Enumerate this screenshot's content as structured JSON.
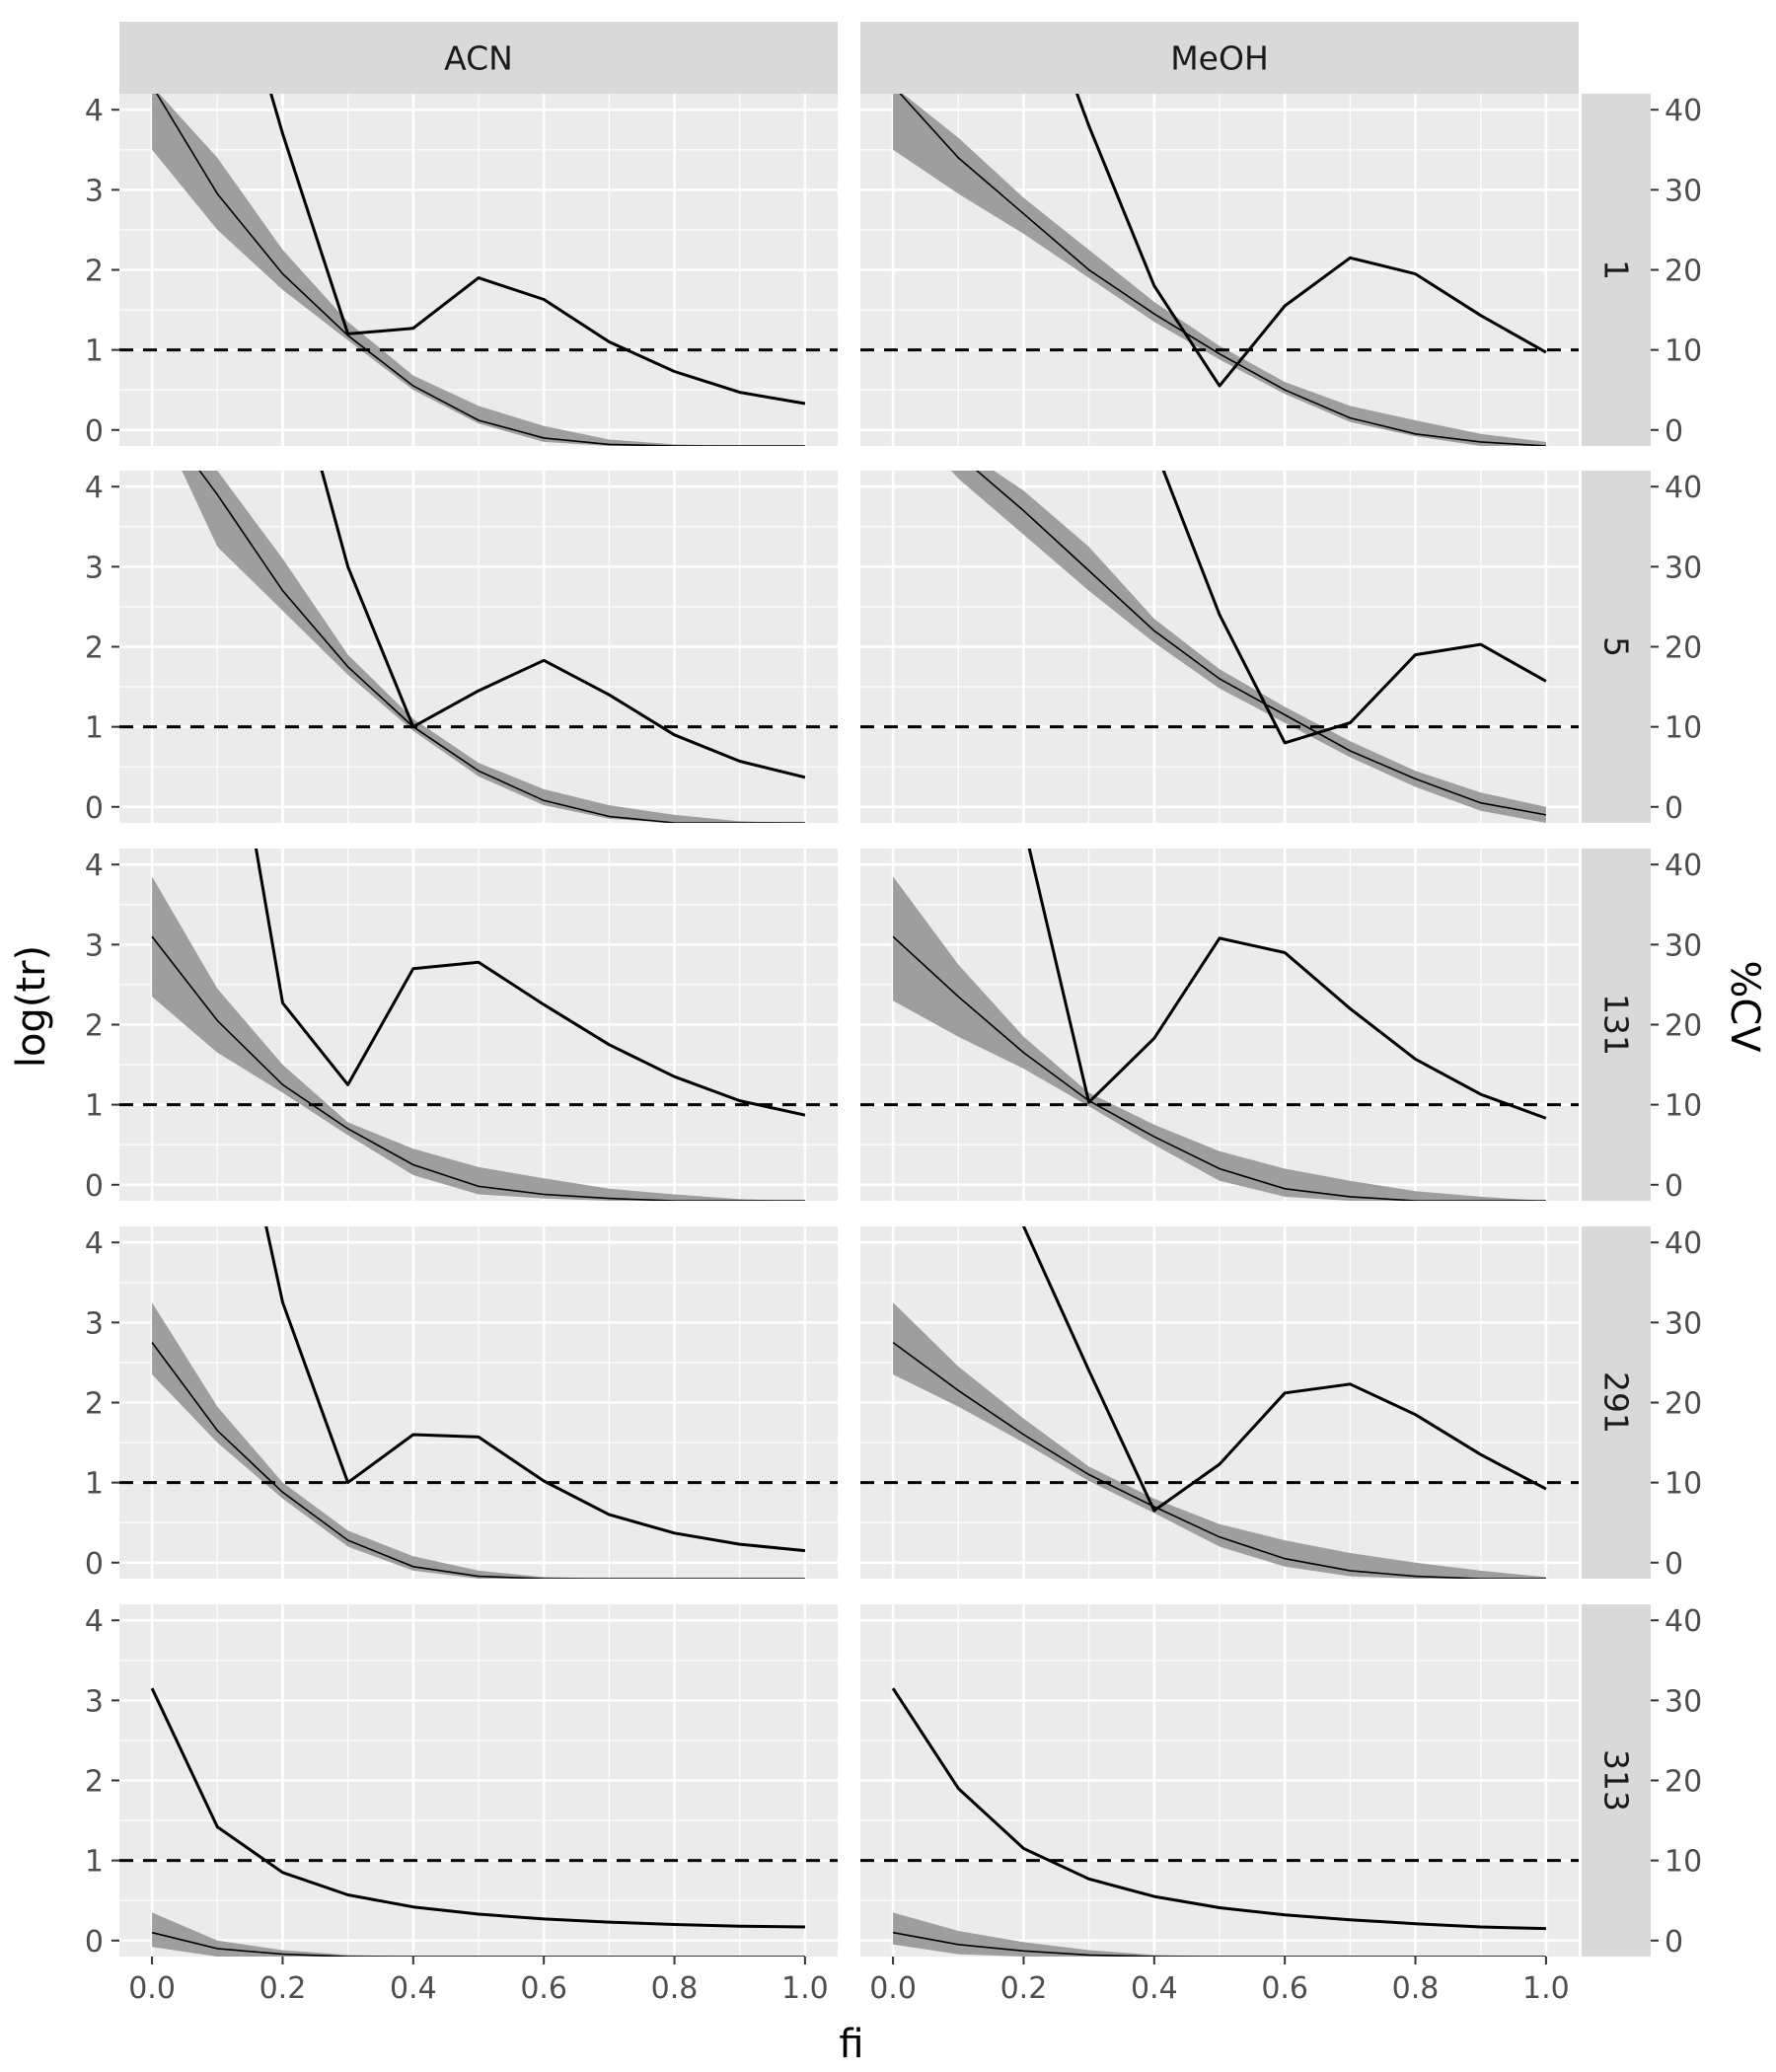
{
  "chart_data": {
    "type": "line",
    "panel_columns": [
      "ACN",
      "MeOH"
    ],
    "panel_rows": [
      "1",
      "5",
      "131",
      "291",
      "313"
    ],
    "xlabel": "fi",
    "ylabel": "log(tr)",
    "y2label": "%CV",
    "xlim": [
      -0.05,
      1.05
    ],
    "ylim": [
      -0.2,
      4.2
    ],
    "y2lim": [
      -2,
      42
    ],
    "x_ticks": [
      "0.0",
      "0.2",
      "0.4",
      "0.6",
      "0.8",
      "1.0"
    ],
    "y_ticks": [
      "0",
      "1",
      "2",
      "3",
      "4"
    ],
    "y2_ticks": [
      "0",
      "10",
      "20",
      "30",
      "40"
    ],
    "reference_line": {
      "y": 1,
      "style": "dashed"
    },
    "x": [
      0.0,
      0.1,
      0.2,
      0.3,
      0.4,
      0.5,
      0.6,
      0.7,
      0.8,
      0.9,
      1.0
    ],
    "panels": [
      {
        "row": "1",
        "col": "ACN",
        "logtr": [
          4.3,
          2.95,
          1.95,
          1.18,
          0.55,
          0.12,
          -0.1,
          -0.18,
          -0.2,
          -0.2,
          -0.2
        ],
        "band_lower": [
          3.5,
          2.5,
          1.75,
          1.12,
          0.5,
          0.08,
          -0.15,
          -0.2,
          -0.2,
          -0.2,
          -0.2
        ],
        "band_upper": [
          4.3,
          3.4,
          2.25,
          1.35,
          0.68,
          0.3,
          0.05,
          -0.12,
          -0.18,
          -0.2,
          -0.2
        ],
        "cv": [
          80,
          65,
          37,
          12,
          12.7,
          19,
          16.3,
          11,
          7.3,
          4.7,
          3.3
        ]
      },
      {
        "row": "1",
        "col": "MeOH",
        "logtr": [
          4.3,
          3.4,
          2.7,
          2.0,
          1.45,
          0.95,
          0.5,
          0.15,
          -0.05,
          -0.15,
          -0.2
        ],
        "band_lower": [
          3.5,
          2.95,
          2.45,
          1.9,
          1.35,
          0.88,
          0.45,
          0.1,
          -0.08,
          -0.2,
          -0.2
        ],
        "band_upper": [
          4.3,
          3.65,
          2.9,
          2.25,
          1.6,
          1.05,
          0.6,
          0.3,
          0.12,
          -0.05,
          -0.15
        ],
        "cv": [
          80,
          70,
          60,
          38,
          18,
          5.5,
          15.5,
          21.5,
          19.5,
          14.3,
          9.7
        ]
      },
      {
        "row": "5",
        "col": "ACN",
        "logtr": [
          5.0,
          3.9,
          2.7,
          1.75,
          1.0,
          0.45,
          0.08,
          -0.12,
          -0.2,
          -0.2,
          -0.2
        ],
        "band_lower": [
          5.0,
          3.25,
          2.45,
          1.65,
          0.95,
          0.38,
          0.02,
          -0.15,
          -0.2,
          -0.2,
          -0.2
        ],
        "band_upper": [
          5.0,
          4.2,
          3.1,
          1.9,
          1.1,
          0.55,
          0.22,
          0.02,
          -0.1,
          -0.18,
          -0.2
        ],
        "cv": [
          80,
          70,
          60,
          30,
          10,
          14.5,
          18.3,
          14,
          9,
          5.7,
          3.7
        ]
      },
      {
        "row": "5",
        "col": "MeOH",
        "logtr": [
          5.0,
          4.4,
          3.7,
          2.95,
          2.2,
          1.6,
          1.15,
          0.7,
          0.35,
          0.05,
          -0.1
        ],
        "band_lower": [
          5.0,
          4.1,
          3.4,
          2.7,
          2.05,
          1.48,
          1.05,
          0.62,
          0.25,
          -0.05,
          -0.2
        ],
        "band_upper": [
          5.0,
          4.5,
          3.95,
          3.25,
          2.35,
          1.72,
          1.25,
          0.82,
          0.45,
          0.18,
          0.0
        ],
        "cv": [
          80,
          70,
          60,
          55,
          45,
          24,
          8,
          10.5,
          19,
          20.3,
          15.7
        ]
      },
      {
        "row": "131",
        "col": "ACN",
        "logtr": [
          3.1,
          2.05,
          1.25,
          0.7,
          0.25,
          -0.02,
          -0.12,
          -0.17,
          -0.2,
          -0.2,
          -0.2
        ],
        "band_lower": [
          2.35,
          1.65,
          1.15,
          0.62,
          0.12,
          -0.12,
          -0.17,
          -0.2,
          -0.2,
          -0.2,
          -0.2
        ],
        "band_upper": [
          3.85,
          2.45,
          1.5,
          0.78,
          0.45,
          0.22,
          0.08,
          -0.05,
          -0.12,
          -0.18,
          -0.2
        ],
        "cv": [
          80,
          70,
          22.7,
          12.5,
          27,
          27.8,
          22.5,
          17.5,
          13.5,
          10.5,
          8.7
        ]
      },
      {
        "row": "131",
        "col": "MeOH",
        "logtr": [
          3.1,
          2.35,
          1.65,
          1.05,
          0.6,
          0.2,
          -0.05,
          -0.15,
          -0.2,
          -0.2,
          -0.2
        ],
        "band_lower": [
          2.3,
          1.85,
          1.45,
          0.98,
          0.5,
          0.05,
          -0.15,
          -0.2,
          -0.2,
          -0.2,
          -0.2
        ],
        "band_upper": [
          3.85,
          2.75,
          1.85,
          1.15,
          0.75,
          0.42,
          0.2,
          0.05,
          -0.08,
          -0.15,
          -0.2
        ],
        "cv": [
          80,
          60,
          45,
          10.3,
          18.3,
          30.8,
          29,
          22,
          15.7,
          11.3,
          8.3
        ]
      },
      {
        "row": "291",
        "col": "ACN",
        "logtr": [
          2.75,
          1.65,
          0.88,
          0.28,
          -0.05,
          -0.17,
          -0.2,
          -0.2,
          -0.2,
          -0.2,
          -0.2
        ],
        "band_lower": [
          2.35,
          1.5,
          0.8,
          0.2,
          -0.1,
          -0.2,
          -0.2,
          -0.2,
          -0.2,
          -0.2,
          -0.2
        ],
        "band_upper": [
          3.25,
          1.95,
          1.0,
          0.4,
          0.08,
          -0.1,
          -0.18,
          -0.2,
          -0.2,
          -0.2,
          -0.2
        ],
        "cv": [
          80,
          70,
          32.5,
          10,
          16,
          15.7,
          10.2,
          6,
          3.7,
          2.3,
          1.5
        ]
      },
      {
        "row": "291",
        "col": "MeOH",
        "logtr": [
          2.75,
          2.15,
          1.6,
          1.1,
          0.7,
          0.32,
          0.05,
          -0.1,
          -0.17,
          -0.2,
          -0.2
        ],
        "band_lower": [
          2.35,
          1.95,
          1.5,
          1.02,
          0.62,
          0.2,
          -0.05,
          -0.17,
          -0.2,
          -0.2,
          -0.2
        ],
        "band_upper": [
          3.25,
          2.45,
          1.8,
          1.2,
          0.8,
          0.48,
          0.28,
          0.12,
          0.0,
          -0.1,
          -0.18
        ],
        "cv": [
          80,
          60,
          42,
          24,
          6.5,
          12.3,
          21.2,
          22.3,
          18.5,
          13.5,
          9.2
        ]
      },
      {
        "row": "313",
        "col": "ACN",
        "logtr": [
          0.1,
          -0.1,
          -0.17,
          -0.2,
          -0.2,
          -0.2,
          -0.2,
          -0.2,
          -0.2,
          -0.2,
          -0.2
        ],
        "band_lower": [
          -0.08,
          -0.2,
          -0.2,
          -0.2,
          -0.2,
          -0.2,
          -0.2,
          -0.2,
          -0.2,
          -0.2,
          -0.2
        ],
        "band_upper": [
          0.35,
          0.0,
          -0.12,
          -0.18,
          -0.2,
          -0.2,
          -0.2,
          -0.2,
          -0.2,
          -0.2,
          -0.2
        ],
        "cv": [
          31.5,
          14.2,
          8.5,
          5.7,
          4.2,
          3.3,
          2.7,
          2.3,
          2,
          1.8,
          1.7
        ]
      },
      {
        "row": "313",
        "col": "MeOH",
        "logtr": [
          0.1,
          -0.05,
          -0.13,
          -0.18,
          -0.2,
          -0.2,
          -0.2,
          -0.2,
          -0.2,
          -0.2,
          -0.2
        ],
        "band_lower": [
          -0.05,
          -0.17,
          -0.2,
          -0.2,
          -0.2,
          -0.2,
          -0.2,
          -0.2,
          -0.2,
          -0.2,
          -0.2
        ],
        "band_upper": [
          0.35,
          0.12,
          -0.02,
          -0.12,
          -0.18,
          -0.2,
          -0.2,
          -0.2,
          -0.2,
          -0.2,
          -0.2
        ],
        "cv": [
          31.5,
          19,
          11.5,
          7.7,
          5.5,
          4.1,
          3.2,
          2.6,
          2.1,
          1.7,
          1.5
        ]
      }
    ],
    "colors": {
      "panel_background": "#ebebeb",
      "grid": "#ffffff",
      "strip": "#d9d9d9",
      "band": "#9e9e9e",
      "line": "#000000"
    }
  }
}
